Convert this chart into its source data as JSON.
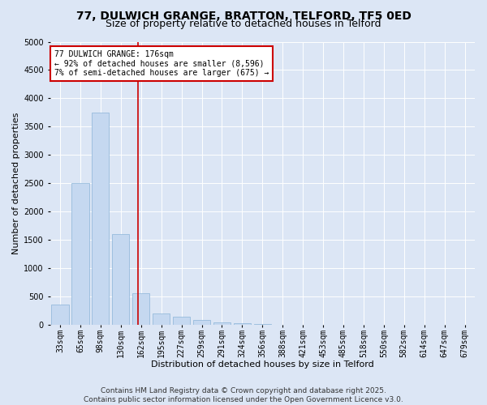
{
  "title_line1": "77, DULWICH GRANGE, BRATTON, TELFORD, TF5 0ED",
  "title_line2": "Size of property relative to detached houses in Telford",
  "xlabel": "Distribution of detached houses by size in Telford",
  "ylabel": "Number of detached properties",
  "categories": [
    "33sqm",
    "65sqm",
    "98sqm",
    "130sqm",
    "162sqm",
    "195sqm",
    "227sqm",
    "259sqm",
    "291sqm",
    "324sqm",
    "356sqm",
    "388sqm",
    "421sqm",
    "453sqm",
    "485sqm",
    "518sqm",
    "550sqm",
    "582sqm",
    "614sqm",
    "647sqm",
    "679sqm"
  ],
  "values": [
    370,
    2500,
    3750,
    1600,
    560,
    200,
    150,
    90,
    50,
    30,
    15,
    8,
    5,
    3,
    2,
    1,
    1,
    1,
    0,
    0,
    0
  ],
  "bar_color": "#c5d8f0",
  "bar_edge_color": "#8ab4d8",
  "vline_x": 3.85,
  "annotation_text": "77 DULWICH GRANGE: 176sqm\n← 92% of detached houses are smaller (8,596)\n7% of semi-detached houses are larger (675) →",
  "annotation_box_color": "#ffffff",
  "annotation_box_edge_color": "#cc0000",
  "vline_color": "#cc0000",
  "bg_color": "#dce6f5",
  "plot_bg_color": "#dce6f5",
  "grid_color": "#ffffff",
  "ylim": [
    0,
    5000
  ],
  "yticks": [
    0,
    500,
    1000,
    1500,
    2000,
    2500,
    3000,
    3500,
    4000,
    4500,
    5000
  ],
  "footer_line1": "Contains HM Land Registry data © Crown copyright and database right 2025.",
  "footer_line2": "Contains public sector information licensed under the Open Government Licence v3.0.",
  "title_fontsize": 10,
  "subtitle_fontsize": 9,
  "axis_label_fontsize": 8,
  "tick_fontsize": 7,
  "annotation_fontsize": 7,
  "footer_fontsize": 6.5
}
